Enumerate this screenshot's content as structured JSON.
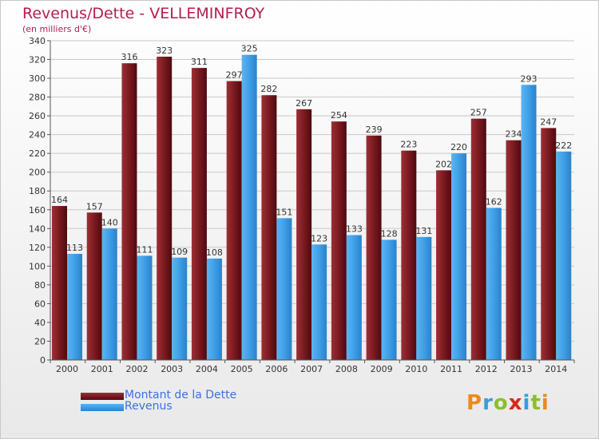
{
  "title": "Revenus/Dette - VELLEMINFROY",
  "subtitle": "(en milliers d'€)",
  "logo": {
    "parts": [
      "P",
      "r",
      "o",
      "x",
      "i",
      "t",
      "i"
    ]
  },
  "colors": {
    "dette": "#7a1a20",
    "revenus": "#3f9fe6",
    "title": "#b41e4e",
    "legend_text": "#3d6fe4"
  },
  "chart_data": {
    "type": "bar",
    "categories": [
      "2000",
      "2001",
      "2002",
      "2003",
      "2004",
      "2005",
      "2006",
      "2007",
      "2008",
      "2009",
      "2010",
      "2011",
      "2012",
      "2013",
      "2014"
    ],
    "series": [
      {
        "name": "Montant de la Dette",
        "values": [
          164,
          157,
          316,
          323,
          311,
          297,
          282,
          267,
          254,
          239,
          223,
          202,
          257,
          234,
          247
        ]
      },
      {
        "name": "Revenus",
        "values": [
          113,
          140,
          111,
          109,
          108,
          325,
          151,
          123,
          133,
          128,
          131,
          220,
          162,
          293,
          222
        ]
      }
    ],
    "ylim": [
      0,
      340
    ],
    "ytick_step": 20,
    "grid": true,
    "legend": "bottom-left"
  }
}
